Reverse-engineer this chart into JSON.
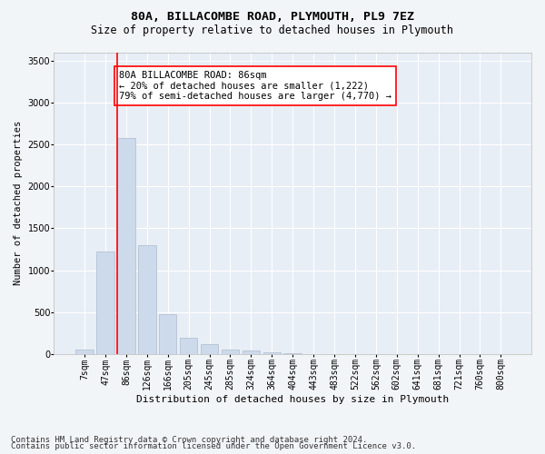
{
  "title1": "80A, BILLACOMBE ROAD, PLYMOUTH, PL9 7EZ",
  "title2": "Size of property relative to detached houses in Plymouth",
  "xlabel": "Distribution of detached houses by size in Plymouth",
  "ylabel": "Number of detached properties",
  "bar_labels": [
    "7sqm",
    "47sqm",
    "86sqm",
    "126sqm",
    "166sqm",
    "205sqm",
    "245sqm",
    "285sqm",
    "324sqm",
    "364sqm",
    "404sqm",
    "443sqm",
    "483sqm",
    "522sqm",
    "562sqm",
    "602sqm",
    "641sqm",
    "681sqm",
    "721sqm",
    "760sqm",
    "800sqm"
  ],
  "bar_values": [
    50,
    1220,
    2580,
    1300,
    480,
    190,
    120,
    55,
    40,
    25,
    10,
    5,
    5,
    0,
    0,
    0,
    0,
    0,
    0,
    0,
    0
  ],
  "bar_color": "#cddaeb",
  "bar_edge_color": "#aabcce",
  "red_line_index": 2,
  "annotation_text": "80A BILLACOMBE ROAD: 86sqm\n← 20% of detached houses are smaller (1,222)\n79% of semi-detached houses are larger (4,770) →",
  "annotation_box_color": "white",
  "annotation_box_edge": "red",
  "ylim": [
    0,
    3600
  ],
  "yticks": [
    0,
    500,
    1000,
    1500,
    2000,
    2500,
    3000,
    3500
  ],
  "footer1": "Contains HM Land Registry data © Crown copyright and database right 2024.",
  "footer2": "Contains public sector information licensed under the Open Government Licence v3.0.",
  "background_color": "#f2f5f8",
  "plot_bg_color": "#e8eef5",
  "grid_color": "white",
  "title1_fontsize": 9.5,
  "title2_fontsize": 8.5,
  "xlabel_fontsize": 8,
  "ylabel_fontsize": 7.5,
  "tick_fontsize": 7,
  "annotation_fontsize": 7.5,
  "footer_fontsize": 6.5
}
